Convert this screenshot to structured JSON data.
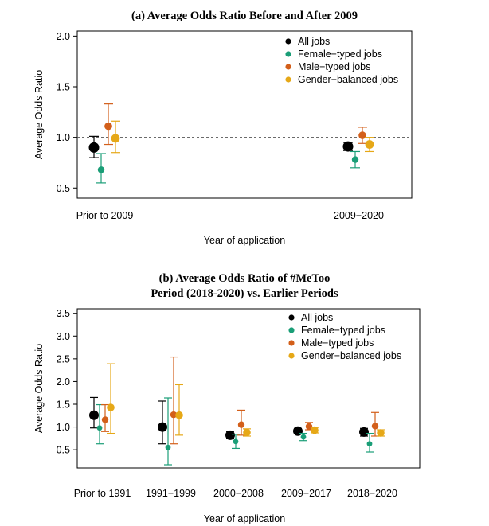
{
  "colors": {
    "All jobs": "#000000",
    "Female-typed jobs": "#1a9e77",
    "Male-typed jobs": "#d35f1a",
    "Gender-balanced jobs": "#e6a817"
  },
  "chart_data": [
    {
      "type": "scatter",
      "subtype": "point-range (estimate with confidence interval)",
      "title": "(a) Average Odds Ratio Before and After 2009",
      "xlabel": "Year of application",
      "ylabel": "Average Odds Ratio",
      "ylim": [
        0.4,
        2.05
      ],
      "yticks": [
        0.5,
        1.0,
        1.5,
        2.0
      ],
      "ytick_labels": [
        "0.5",
        "1.0",
        "1.5",
        "2.0"
      ],
      "reference_line": 1.0,
      "grid": false,
      "legend_position": "top-right",
      "categories": [
        "Prior to 2009",
        "2009−2020"
      ],
      "series": [
        {
          "name": "All jobs",
          "values": [
            0.9,
            0.91
          ],
          "lower": [
            0.8,
            0.87
          ],
          "upper": [
            1.01,
            0.95
          ]
        },
        {
          "name": "Female−typed jobs",
          "values": [
            0.68,
            0.78
          ],
          "lower": [
            0.55,
            0.7
          ],
          "upper": [
            0.84,
            0.86
          ]
        },
        {
          "name": "Male−typed jobs",
          "values": [
            1.11,
            1.02
          ],
          "lower": [
            0.93,
            0.94
          ],
          "upper": [
            1.33,
            1.1
          ]
        },
        {
          "name": "Gender−balanced jobs",
          "values": [
            0.99,
            0.93
          ],
          "lower": [
            0.85,
            0.86
          ],
          "upper": [
            1.16,
            1.0
          ]
        }
      ]
    },
    {
      "type": "scatter",
      "subtype": "point-range (estimate with confidence interval)",
      "title": "(b) Average Odds Ratio of #MeToo Period (2018-2020) vs. Earlier Periods",
      "title_lines": [
        "(b) Average Odds Ratio of #MeToo",
        "Period (2018-2020) vs. Earlier Periods"
      ],
      "xlabel": "Year of application",
      "ylabel": "Average Odds Ratio",
      "ylim": [
        0.1,
        3.6
      ],
      "yticks": [
        0.5,
        1.0,
        1.5,
        2.0,
        2.5,
        3.0,
        3.5
      ],
      "ytick_labels": [
        "0.5",
        "1.0",
        "1.5",
        "2.0",
        "2.5",
        "3.0",
        "3.5"
      ],
      "reference_line": 1.0,
      "grid": false,
      "legend_position": "top-right",
      "categories": [
        "Prior to 1991",
        "1991−1999",
        "2000−2008",
        "2009−2017",
        "2018−2020"
      ],
      "series": [
        {
          "name": "All jobs",
          "values": [
            1.26,
            1.0,
            0.82,
            0.91,
            0.89
          ],
          "lower": [
            0.98,
            0.63,
            0.74,
            0.86,
            0.8
          ],
          "upper": [
            1.65,
            1.57,
            0.9,
            0.97,
            0.97
          ]
        },
        {
          "name": "Female−typed jobs",
          "values": [
            0.98,
            0.55,
            0.68,
            0.78,
            0.63
          ],
          "lower": [
            0.63,
            0.17,
            0.53,
            0.7,
            0.45
          ],
          "upper": [
            1.49,
            1.64,
            0.84,
            0.86,
            0.86
          ]
        },
        {
          "name": "Male−typed jobs",
          "values": [
            1.16,
            1.27,
            1.05,
            1.01,
            1.02
          ],
          "lower": [
            0.9,
            0.63,
            0.82,
            0.94,
            0.8
          ],
          "upper": [
            1.49,
            2.54,
            1.37,
            1.1,
            1.32
          ]
        },
        {
          "name": "Gender−balanced jobs",
          "values": [
            1.43,
            1.26,
            0.88,
            0.93,
            0.87
          ],
          "lower": [
            0.86,
            0.82,
            0.8,
            0.87,
            0.8
          ],
          "upper": [
            2.39,
            1.93,
            0.96,
            0.99,
            0.94
          ]
        }
      ]
    }
  ]
}
